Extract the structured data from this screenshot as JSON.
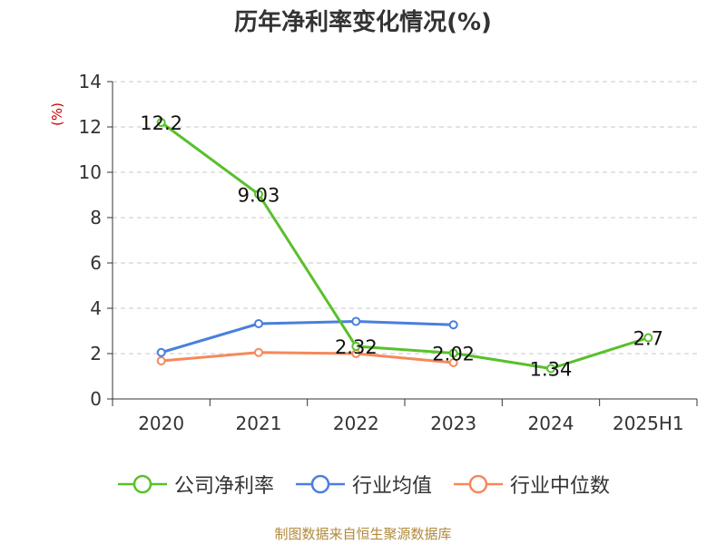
{
  "page": {
    "title": "历年净利率变化情况(%)",
    "source": "制图数据来自恒生聚源数据库"
  },
  "chart_data": {
    "type": "line",
    "title": "历年净利率变化情况(%)",
    "ylabel": "(%)",
    "categories": [
      "2020",
      "2021",
      "2022",
      "2023",
      "2024",
      "2025H1"
    ],
    "ylim": [
      0,
      14
    ],
    "yticks": [
      0,
      2,
      4,
      6,
      8,
      10,
      12,
      14
    ],
    "grid": true,
    "legend_position": "bottom",
    "series": [
      {
        "name": "公司净利率",
        "color": "#59c02b",
        "values": [
          12.2,
          9.03,
          2.32,
          2.02,
          1.34,
          2.7
        ],
        "labels": [
          "12.2",
          "9.03",
          "2.32",
          "2.02",
          "1.34",
          "2.7"
        ]
      },
      {
        "name": "行业均值",
        "color": "#4a7fdc",
        "values": [
          2.05,
          3.32,
          3.42,
          3.27,
          null,
          null
        ]
      },
      {
        "name": "行业中位数",
        "color": "#f5895a",
        "values": [
          1.68,
          2.05,
          2.0,
          1.6,
          null,
          null
        ]
      }
    ]
  }
}
